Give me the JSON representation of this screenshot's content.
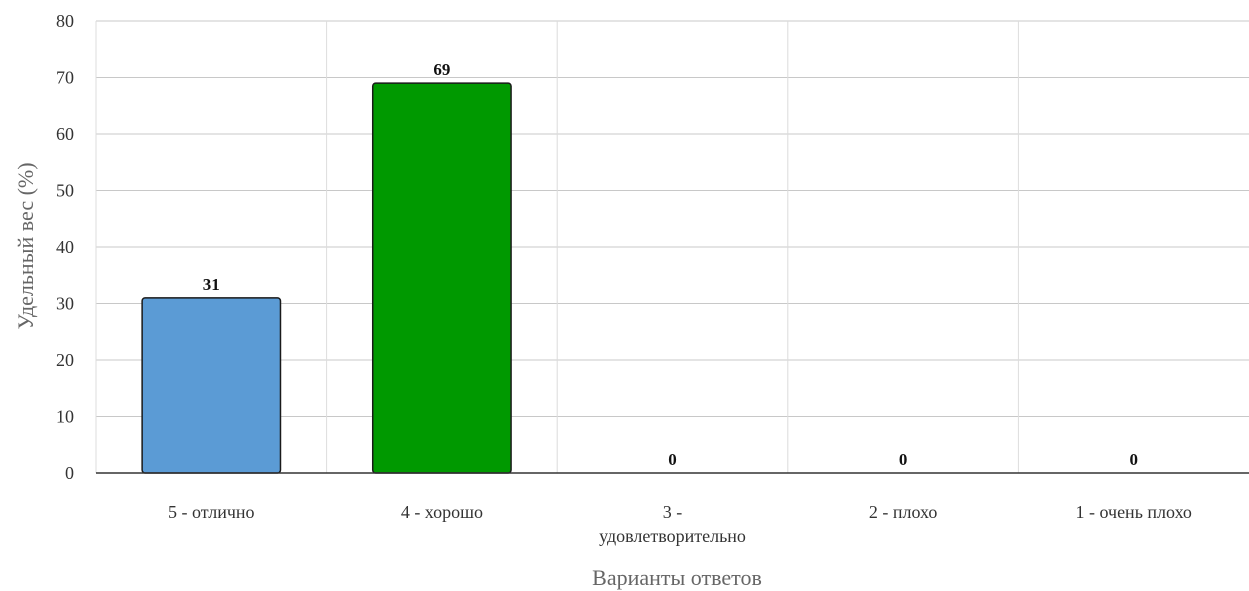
{
  "chart_data": {
    "type": "bar",
    "categories": [
      "5 - отлично",
      "4 - хорошо",
      "3 - удовлетворительно",
      "2 - плохо",
      "1 - очень плохо"
    ],
    "category_lines": [
      [
        "5 - отлично"
      ],
      [
        "4 - хорошо"
      ],
      [
        "3 -",
        "удовлетворительно"
      ],
      [
        "2 - плохо"
      ],
      [
        "1 - очень плохо"
      ]
    ],
    "values": [
      31,
      69,
      0,
      0,
      0
    ],
    "data_labels": [
      "31",
      "69",
      "0",
      "0",
      "0"
    ],
    "colors": [
      "#5b9bd5",
      "#009900",
      "#ffc000",
      "#c00000",
      "#7030a0"
    ],
    "xlabel": "Варианты ответов",
    "ylabel": "Удельный вес (%)",
    "ylim": [
      0,
      80
    ],
    "yticks": [
      0,
      10,
      20,
      30,
      40,
      50,
      60,
      70,
      80
    ],
    "grid": true,
    "legend": "none"
  }
}
